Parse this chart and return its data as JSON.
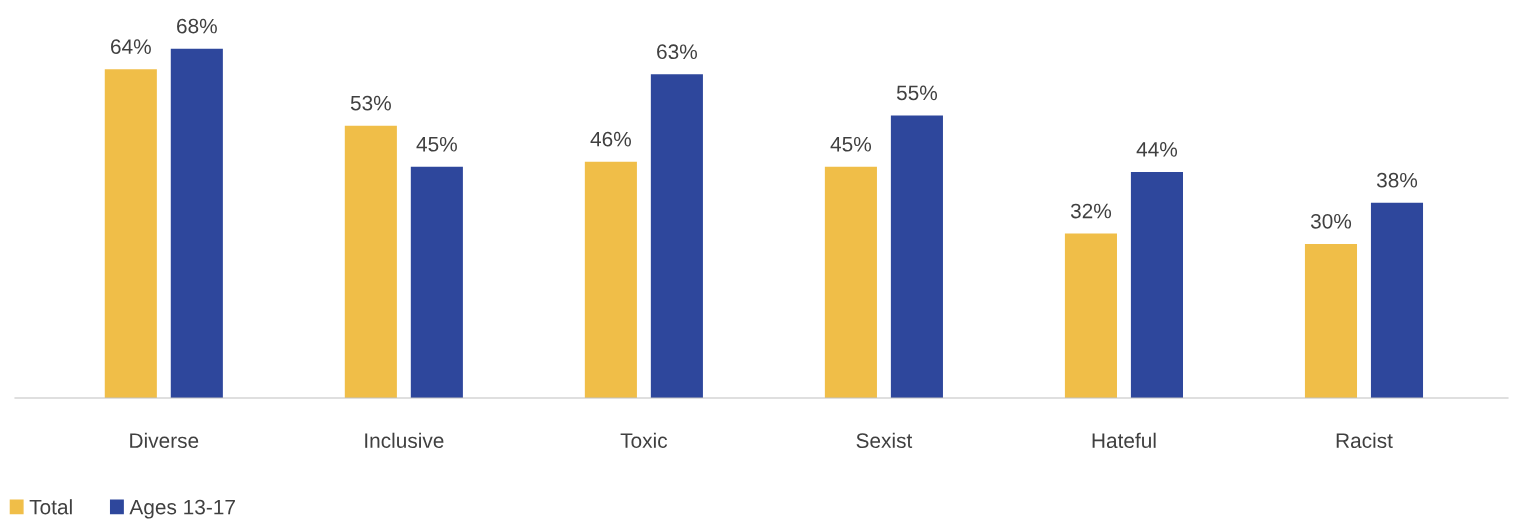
{
  "chart_data": {
    "type": "bar",
    "categories": [
      "Diverse",
      "Inclusive",
      "Toxic",
      "Sexist",
      "Hateful",
      "Racist"
    ],
    "series": [
      {
        "name": "Total",
        "color": "#f0be48",
        "values": [
          64,
          53,
          46,
          45,
          32,
          30
        ],
        "value_labels": [
          "64%",
          "53%",
          "46%",
          "45%",
          "32%",
          "30%"
        ]
      },
      {
        "name": "Ages 13-17",
        "color": "#2e479c",
        "values": [
          68,
          45,
          63,
          55,
          44,
          38
        ],
        "value_labels": [
          "68%",
          "45%",
          "63%",
          "55%",
          "44%",
          "38%"
        ]
      }
    ],
    "grid": false,
    "legend": "bottom left"
  }
}
